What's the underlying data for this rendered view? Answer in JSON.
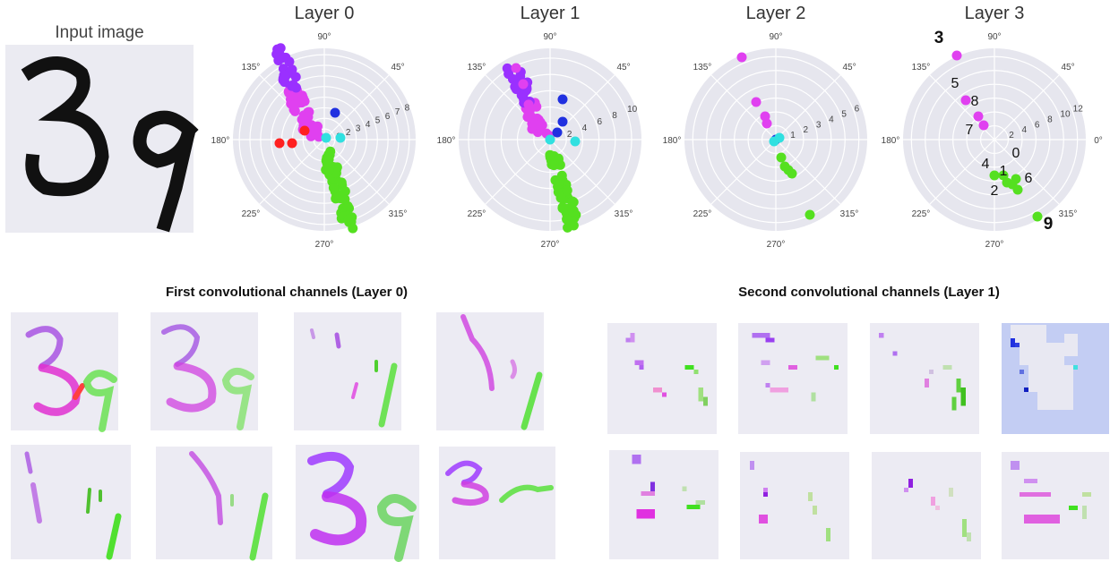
{
  "input_title": "Input image",
  "layers": [
    {
      "title": "Layer 0",
      "r_ticks": [
        "1",
        "2",
        "3",
        "4",
        "5",
        "6",
        "7",
        "8"
      ]
    },
    {
      "title": "Layer 1",
      "r_ticks": [
        "2",
        "4",
        "6",
        "8",
        "10"
      ]
    },
    {
      "title": "Layer 2",
      "r_ticks": [
        "1",
        "2",
        "3",
        "4",
        "5",
        "6"
      ]
    },
    {
      "title": "Layer 3",
      "r_ticks": [
        "2",
        "4",
        "6",
        "8",
        "10",
        "12"
      ]
    }
  ],
  "angle_labels": [
    "0°",
    "45°",
    "90°",
    "135°",
    "180°",
    "225°",
    "270°",
    "315°"
  ],
  "layer3_digit_labels": [
    "3",
    "5",
    "8",
    "7",
    "0",
    "4",
    "1",
    "6",
    "2",
    "9"
  ],
  "sections": {
    "first": "First convolutional channels (Layer 0)",
    "second": "Second convolutional channels (Layer 1)"
  },
  "colors": {
    "magenta": "#e040f0",
    "violet": "#9a30ff",
    "green": "#55e020",
    "cyan": "#30e0e0",
    "red": "#ff2020",
    "blue": "#2030e0",
    "polar_bg": "#e6e6ee"
  }
}
